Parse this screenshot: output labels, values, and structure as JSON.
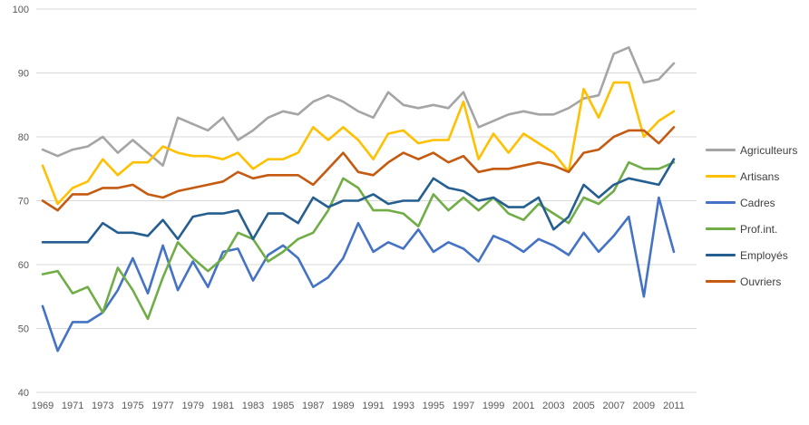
{
  "chart_data": {
    "type": "line",
    "title": "",
    "xlabel": "",
    "ylabel": "",
    "ylim": [
      40,
      100
    ],
    "ytick_step": 10,
    "yticks": [
      40,
      50,
      60,
      70,
      80,
      90,
      100
    ],
    "grid": "horizontal",
    "legend_position": "right",
    "x": [
      1969,
      1970,
      1971,
      1972,
      1973,
      1974,
      1975,
      1976,
      1977,
      1978,
      1979,
      1980,
      1981,
      1982,
      1983,
      1984,
      1985,
      1986,
      1987,
      1988,
      1989,
      1990,
      1991,
      1992,
      1993,
      1994,
      1995,
      1996,
      1997,
      1998,
      1999,
      2000,
      2001,
      2002,
      2003,
      2004,
      2005,
      2006,
      2007,
      2008,
      2009,
      2010,
      2011
    ],
    "xtick_labels": [
      "1969",
      "1971",
      "1973",
      "1975",
      "1977",
      "1979",
      "1981",
      "1983",
      "1985",
      "1987",
      "1989",
      "1991",
      "1993",
      "1995",
      "1997",
      "1999",
      "2001",
      "2003",
      "2005",
      "2007",
      "2009",
      "2011"
    ],
    "series": [
      {
        "name": "Agriculteurs",
        "color": "#a5a5a5",
        "values": [
          78,
          77,
          78,
          78.5,
          80,
          77.5,
          79.5,
          77.5,
          75.5,
          83,
          82,
          81,
          83,
          79.5,
          81,
          83,
          84,
          83.5,
          85.5,
          86.5,
          85.5,
          84,
          83,
          87,
          85,
          84.5,
          85,
          84.5,
          87,
          81.5,
          82.5,
          83.5,
          84,
          83.5,
          83.5,
          84.5,
          86,
          86.5,
          93,
          94,
          88.5,
          89,
          91.5
        ]
      },
      {
        "name": "Artisans",
        "color": "#ffc000",
        "values": [
          75.5,
          69.5,
          72,
          73,
          76.5,
          74,
          76,
          76,
          78.5,
          77.5,
          77,
          77,
          76.5,
          77.5,
          75,
          76.5,
          76.5,
          77.5,
          81.5,
          79.5,
          81.5,
          79.5,
          76.5,
          80.5,
          81,
          79,
          79.5,
          79.5,
          85.5,
          76.5,
          80.5,
          77.5,
          80.5,
          79,
          77.5,
          74.5,
          87.5,
          83,
          88.5,
          88.5,
          80,
          82.5,
          84
        ]
      },
      {
        "name": "Cadres",
        "color": "#4472c4",
        "values": [
          53.5,
          46.5,
          51,
          51,
          52.5,
          56,
          61,
          55.5,
          63,
          56,
          60.5,
          56.5,
          62,
          62.5,
          57.5,
          61.5,
          63,
          61,
          56.5,
          58,
          61,
          66.5,
          62,
          63.5,
          62.5,
          65.5,
          62,
          63.5,
          62.5,
          60.5,
          64.5,
          63.5,
          62,
          64,
          63,
          61.5,
          65,
          62,
          64.5,
          67.5,
          55,
          70.5,
          62
        ]
      },
      {
        "name": "Prof.int.",
        "color": "#70ad47",
        "values": [
          58.5,
          59,
          55.5,
          56.5,
          52.5,
          59.5,
          56,
          51.5,
          58,
          63.5,
          61,
          59,
          61,
          65,
          64,
          60.5,
          62,
          64,
          65,
          68.5,
          73.5,
          72,
          68.5,
          68.5,
          68,
          66,
          71,
          68.5,
          70.5,
          68.5,
          70.5,
          68,
          67,
          69.5,
          68,
          66.5,
          70.5,
          69.5,
          71.5,
          76,
          75,
          75,
          76
        ]
      },
      {
        "name": "Employés",
        "color": "#255e91",
        "values": [
          63.5,
          63.5,
          63.5,
          63.5,
          66.5,
          65,
          65,
          64.5,
          67,
          64,
          67.5,
          68,
          68,
          68.5,
          64,
          68,
          68,
          66.5,
          70.5,
          69,
          70,
          70,
          71,
          69.5,
          70,
          70,
          73.5,
          72,
          71.5,
          70,
          70.5,
          69,
          69,
          70.5,
          65.5,
          67.5,
          72.5,
          70.5,
          72.5,
          73.5,
          73,
          72.5,
          76.5
        ]
      },
      {
        "name": "Ouvriers",
        "color": "#c55a11",
        "values": [
          70,
          68.5,
          71,
          71,
          72,
          72,
          72.5,
          71,
          70.5,
          71.5,
          72,
          72.5,
          73,
          74.5,
          73.5,
          74,
          74,
          74,
          72.5,
          75,
          77.5,
          74.5,
          74,
          76,
          77.5,
          76.5,
          77.5,
          76,
          77,
          74.5,
          75,
          75,
          75.5,
          76,
          75.5,
          74.5,
          77.5,
          78,
          80,
          81,
          81,
          79,
          81.5
        ]
      }
    ]
  }
}
